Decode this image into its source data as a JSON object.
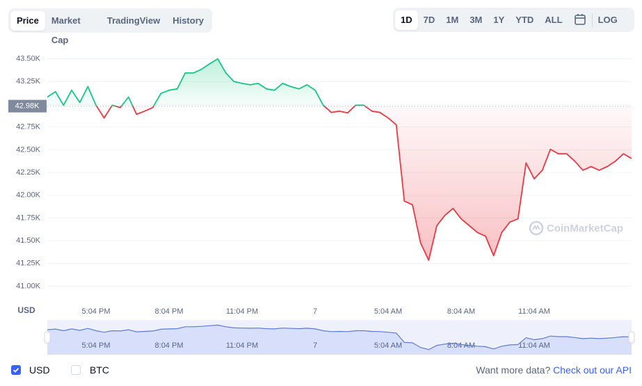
{
  "tabs": [
    "Price",
    "Market Cap",
    "TradingView",
    "History"
  ],
  "ranges": [
    "1D",
    "7D",
    "1M",
    "3M",
    "1Y",
    "YTD",
    "ALL"
  ],
  "log_label": "LOG",
  "watermark": "CoinMarketCap",
  "currency_toggles": [
    "USD",
    "BTC"
  ],
  "footer": {
    "prompt": "Want more data?",
    "link": "Check out our API"
  },
  "chart_data": {
    "type": "line",
    "y_unit_label": "USD",
    "up_color": "#16c784",
    "down_color": "#ea3943",
    "grid": true,
    "baseline": {
      "value": 42980,
      "label": "42.98K"
    },
    "ylim": [
      40820,
      43650
    ],
    "yticks": [
      {
        "value": 41000,
        "label": "41.00K"
      },
      {
        "value": 41250,
        "label": "41.25K"
      },
      {
        "value": 41500,
        "label": "41.50K"
      },
      {
        "value": 41750,
        "label": "41.75K"
      },
      {
        "value": 42000,
        "label": "42.00K"
      },
      {
        "value": 42250,
        "label": "42.25K"
      },
      {
        "value": 42500,
        "label": "42.50K"
      },
      {
        "value": 42750,
        "label": "42.75K"
      },
      {
        "value": 43000,
        "label": "43.00K"
      },
      {
        "value": 43250,
        "label": "43.25K"
      },
      {
        "value": 43500,
        "label": "43.50K"
      }
    ],
    "categories": [
      null,
      null,
      null,
      null,
      null,
      null,
      "5:04 PM",
      null,
      null,
      null,
      null,
      null,
      null,
      null,
      null,
      "8:04 PM",
      null,
      null,
      null,
      null,
      null,
      null,
      null,
      null,
      "11:04 PM",
      null,
      null,
      null,
      null,
      null,
      null,
      null,
      null,
      "7",
      null,
      null,
      null,
      null,
      null,
      null,
      null,
      null,
      "5:04 AM",
      null,
      null,
      null,
      null,
      null,
      null,
      null,
      null,
      "8:04 AM",
      null,
      null,
      null,
      null,
      null,
      null,
      null,
      null,
      "11:04 AM",
      null,
      null,
      null,
      null,
      null,
      null,
      null,
      null,
      null,
      null,
      null,
      null
    ],
    "values": [
      43080,
      43140,
      42990,
      43155,
      43020,
      43195,
      42990,
      42850,
      42990,
      42965,
      43080,
      42890,
      42925,
      42965,
      43120,
      43155,
      43170,
      43345,
      43345,
      43385,
      43445,
      43500,
      43345,
      43250,
      43230,
      43215,
      43230,
      43170,
      43155,
      43230,
      43195,
      43170,
      43215,
      43155,
      42990,
      42910,
      42925,
      42905,
      42990,
      42990,
      42925,
      42910,
      42850,
      42775,
      41935,
      41895,
      41475,
      41285,
      41665,
      41780,
      41855,
      41740,
      41665,
      41590,
      41550,
      41335,
      41590,
      41705,
      41740,
      42355,
      42180,
      42275,
      42505,
      42455,
      42455,
      42375,
      42275,
      42315,
      42275,
      42315,
      42375,
      42455,
      42405
    ]
  }
}
